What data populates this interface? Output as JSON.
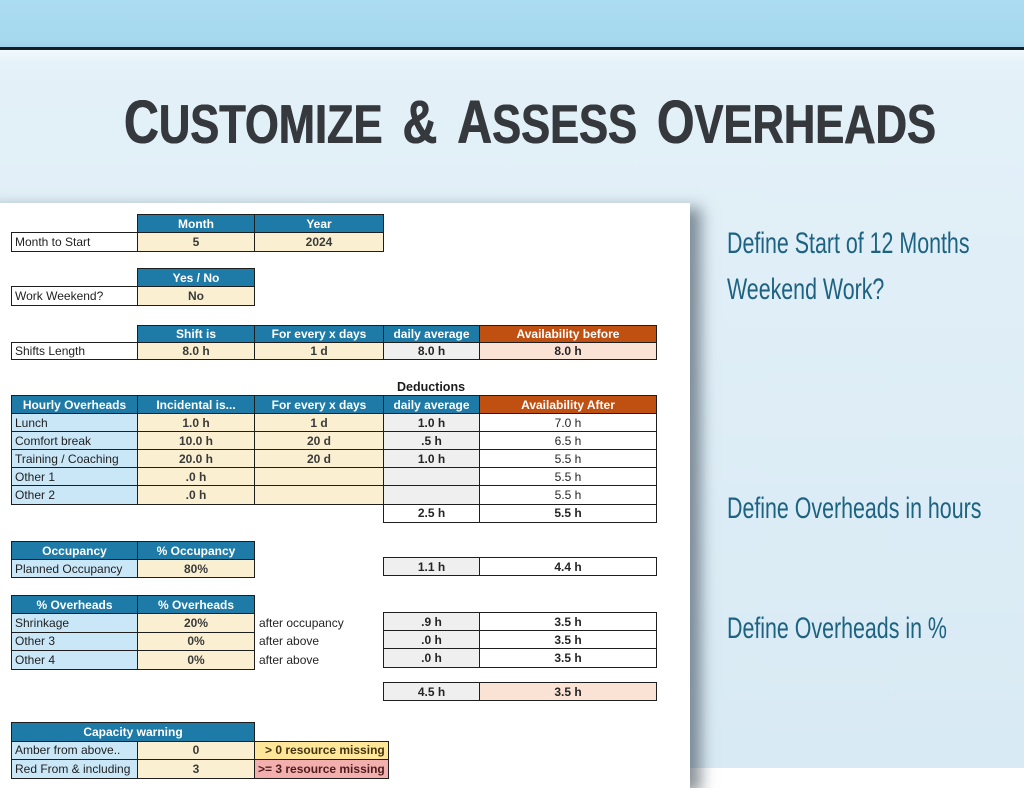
{
  "title": "Customize & Assess Overheads",
  "captions": [
    {
      "text": "Define Start of 12 Months"
    },
    {
      "text": "Weekend Work?"
    },
    {
      "text": "Define Overheads in hours"
    },
    {
      "text": "Define Overheads in %"
    }
  ],
  "colors": {
    "top_band": "#a6d8ee",
    "divider_line": "#151d27",
    "background": "#dfeef7",
    "panel": "#ffffff",
    "header_blue": "#1e7aa6",
    "header_orange": "#bf5012",
    "cell_cream": "#faf0d1",
    "cell_light_blue": "#cae7f8",
    "cell_gray": "#efefef",
    "cell_peach": "#fae3d4",
    "cell_amber": "#ffe699",
    "cell_red": "#f3aeae",
    "title_text": "#35393e",
    "caption_text": "#1e6380"
  },
  "sheet": {
    "month_table": {
      "col1_header": "Month",
      "col2_header": "Year",
      "row_label": "Month to Start",
      "month_value": "5",
      "year_value": "2024"
    },
    "weekend_table": {
      "header": "Yes / No",
      "row_label": "Work Weekend?",
      "value": "No"
    },
    "shift_table": {
      "h_shift": "Shift is",
      "h_every": "For every x days",
      "h_daily": "daily average",
      "h_avail": "Availability before",
      "row_label": "Shifts Length",
      "shift": "8.0 h",
      "every": "1 d",
      "daily": "8.0 h",
      "avail": "8.0 h"
    },
    "deductions_label": "Deductions",
    "hourly_table": {
      "h_label": "Hourly Overheads",
      "h_incidental": "Incidental is...",
      "h_every": "For every x days",
      "h_daily": "daily average",
      "h_avail": "Availability After",
      "rows": [
        {
          "label": "Lunch",
          "incidental": "1.0 h",
          "every": "1 d",
          "daily": "1.0 h",
          "after": "7.0 h"
        },
        {
          "label": "Comfort break",
          "incidental": "10.0 h",
          "every": "20 d",
          "daily": ".5 h",
          "after": "6.5 h"
        },
        {
          "label": "Training / Coaching",
          "incidental": "20.0 h",
          "every": "20 d",
          "daily": "1.0 h",
          "after": "5.5 h"
        },
        {
          "label": "Other 1",
          "incidental": ".0 h",
          "every": "",
          "daily": "",
          "after": "5.5 h"
        },
        {
          "label": "Other 2",
          "incidental": ".0 h",
          "every": "",
          "daily": "",
          "after": "5.5 h"
        }
      ],
      "total_daily": "2.5 h",
      "total_after": "5.5 h"
    },
    "occupancy_table": {
      "h_label": "Occupancy",
      "h_value": "% Occupancy",
      "row_label": "Planned Occupancy",
      "value": "80%",
      "result_daily": "1.1 h",
      "result_after": "4.4 h"
    },
    "pct_table": {
      "h_label": "% Overheads",
      "h_value": "% Overheads",
      "rows": [
        {
          "label": "Shrinkage",
          "value": "20%",
          "note": "after occupancy"
        },
        {
          "label": "Other 3",
          "value": "0%",
          "note": "after above"
        },
        {
          "label": "Other 4",
          "value": "0%",
          "note": "after above"
        }
      ],
      "results": [
        {
          "daily": ".9 h",
          "after": "3.5 h"
        },
        {
          "daily": ".0 h",
          "after": "3.5 h"
        },
        {
          "daily": ".0 h",
          "after": "3.5 h"
        }
      ]
    },
    "grand_total": {
      "daily": "4.5 h",
      "after": "3.5 h"
    },
    "capacity_table": {
      "header": "Capacity warning",
      "rows": [
        {
          "label": "Amber from above..",
          "value": "0",
          "note": "> 0 resource missing"
        },
        {
          "label": "Red From & including",
          "value": "3",
          "note": ">= 3 resource missing"
        }
      ]
    }
  }
}
